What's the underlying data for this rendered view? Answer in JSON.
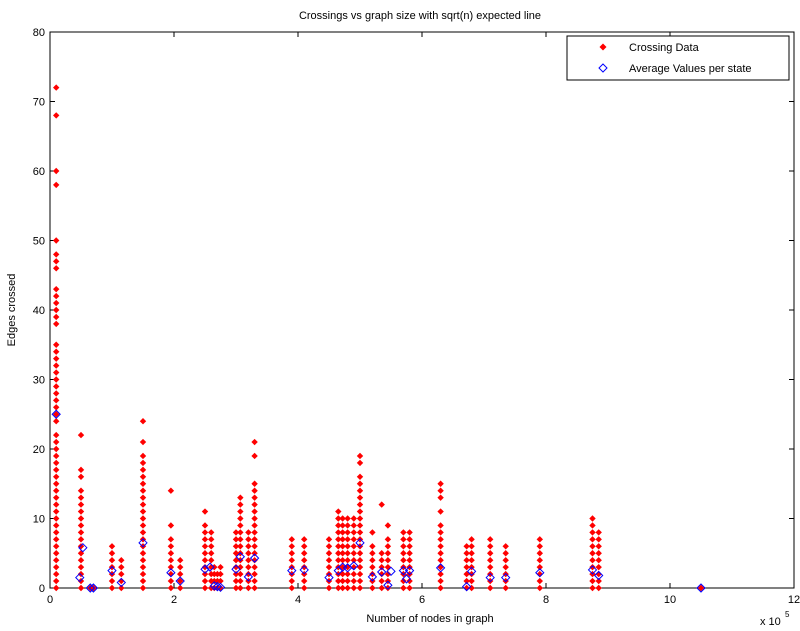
{
  "chart_data": {
    "type": "scatter",
    "title": "Crossings vs graph size with sqrt(n) expected line",
    "xlabel": "Number of nodes in graph",
    "ylabel": "Edges crossed",
    "x_scale_label": "x 10",
    "x_scale_exponent": "5",
    "xlim": [
      0,
      12
    ],
    "ylim": [
      0,
      80
    ],
    "xticks": [
      "0",
      "2",
      "4",
      "6",
      "8",
      "10",
      "12"
    ],
    "yticks": [
      "0",
      "10",
      "20",
      "30",
      "40",
      "50",
      "60",
      "70",
      "80"
    ],
    "grid": false,
    "legend_position": "top-right",
    "series": [
      {
        "name": "Crossing Data",
        "marker": "filled-diamond",
        "color": "#ff0000",
        "columns": [
          {
            "x": 0.1,
            "ys": [
              0,
              1,
              2,
              3,
              4,
              5,
              6,
              7,
              8,
              9,
              10,
              11,
              12,
              13,
              14,
              15,
              16,
              17,
              18,
              19,
              20,
              21,
              22,
              24,
              25,
              26,
              27,
              28,
              29,
              30,
              31,
              32,
              33,
              34,
              35,
              38,
              39,
              40,
              41,
              42,
              43,
              46,
              47,
              48,
              50,
              58,
              60,
              68,
              72
            ]
          },
          {
            "x": 0.5,
            "ys": [
              0,
              1,
              2,
              3,
              4,
              5,
              6,
              7,
              8,
              9,
              10,
              11,
              12,
              13,
              14,
              16,
              17,
              22
            ]
          },
          {
            "x": 0.65,
            "ys": [
              0
            ]
          },
          {
            "x": 0.7,
            "ys": [
              0
            ]
          },
          {
            "x": 1.0,
            "ys": [
              0,
              1,
              2,
              3,
              4,
              5,
              6
            ]
          },
          {
            "x": 1.15,
            "ys": [
              0,
              1,
              2,
              3,
              4
            ]
          },
          {
            "x": 1.5,
            "ys": [
              0,
              1,
              2,
              3,
              4,
              5,
              6,
              7,
              8,
              9,
              10,
              11,
              12,
              13,
              14,
              15,
              16,
              17,
              18,
              19,
              21,
              24
            ]
          },
          {
            "x": 1.95,
            "ys": [
              0,
              1,
              2,
              3,
              4,
              5,
              6,
              7,
              9,
              14
            ]
          },
          {
            "x": 2.1,
            "ys": [
              0,
              1,
              2,
              3,
              4
            ]
          },
          {
            "x": 2.5,
            "ys": [
              0,
              1,
              2,
              3,
              4,
              5,
              6,
              7,
              8,
              9,
              11
            ]
          },
          {
            "x": 2.6,
            "ys": [
              0,
              1,
              2,
              3,
              4,
              5,
              6,
              7,
              8
            ]
          },
          {
            "x": 2.65,
            "ys": [
              0,
              1,
              2,
              3
            ]
          },
          {
            "x": 2.7,
            "ys": [
              0,
              1,
              2
            ]
          },
          {
            "x": 2.75,
            "ys": [
              0,
              1,
              2,
              3
            ]
          },
          {
            "x": 3.0,
            "ys": [
              0,
              1,
              2,
              3,
              4,
              5,
              6,
              7,
              8
            ]
          },
          {
            "x": 3.07,
            "ys": [
              0,
              1,
              2,
              3,
              4,
              5,
              6,
              7,
              8,
              9,
              10,
              11,
              12,
              13
            ]
          },
          {
            "x": 3.2,
            "ys": [
              0,
              1,
              2,
              3,
              4,
              5,
              6,
              7,
              8
            ]
          },
          {
            "x": 3.3,
            "ys": [
              0,
              1,
              2,
              3,
              4,
              5,
              6,
              7,
              8,
              9,
              10,
              11,
              12,
              13,
              14,
              15,
              19,
              21
            ]
          },
          {
            "x": 3.9,
            "ys": [
              0,
              1,
              2,
              3,
              4,
              5,
              6,
              7
            ]
          },
          {
            "x": 4.1,
            "ys": [
              0,
              1,
              2,
              3,
              4,
              5,
              6,
              7
            ]
          },
          {
            "x": 4.5,
            "ys": [
              0,
              1,
              2,
              3,
              4,
              5,
              6,
              7
            ]
          },
          {
            "x": 4.65,
            "ys": [
              0,
              1,
              2,
              3,
              4,
              5,
              6,
              7,
              8,
              9,
              10,
              11
            ]
          },
          {
            "x": 4.72,
            "ys": [
              0,
              1,
              2,
              3,
              4,
              5,
              6,
              7,
              8,
              9,
              10
            ]
          },
          {
            "x": 4.8,
            "ys": [
              0,
              1,
              2,
              3,
              4,
              5,
              6,
              7,
              8,
              9,
              10
            ]
          },
          {
            "x": 4.9,
            "ys": [
              0,
              1,
              2,
              3,
              4,
              5,
              6,
              7,
              8,
              9,
              10
            ]
          },
          {
            "x": 5.0,
            "ys": [
              0,
              1,
              2,
              3,
              4,
              5,
              6,
              7,
              8,
              9,
              10,
              11,
              12,
              13,
              14,
              15,
              16,
              18,
              19
            ]
          },
          {
            "x": 5.2,
            "ys": [
              0,
              1,
              2,
              3,
              4,
              5,
              6,
              8
            ]
          },
          {
            "x": 5.35,
            "ys": [
              0,
              1,
              2,
              3,
              4,
              5,
              12
            ]
          },
          {
            "x": 5.45,
            "ys": [
              0,
              1,
              2,
              3,
              4,
              5,
              6,
              7,
              9
            ]
          },
          {
            "x": 5.7,
            "ys": [
              0,
              1,
              2,
              3,
              4,
              5,
              6,
              7,
              8
            ]
          },
          {
            "x": 5.8,
            "ys": [
              0,
              1,
              2,
              3,
              4,
              5,
              6,
              7,
              8
            ]
          },
          {
            "x": 6.3,
            "ys": [
              0,
              1,
              2,
              3,
              4,
              5,
              6,
              7,
              8,
              9,
              11,
              13,
              14,
              15
            ]
          },
          {
            "x": 6.72,
            "ys": [
              0,
              1,
              2,
              3,
              4,
              5,
              6
            ]
          },
          {
            "x": 6.8,
            "ys": [
              0,
              1,
              2,
              3,
              4,
              5,
              6,
              7
            ]
          },
          {
            "x": 7.1,
            "ys": [
              0,
              1,
              2,
              3,
              4,
              5,
              6,
              7
            ]
          },
          {
            "x": 7.35,
            "ys": [
              0,
              1,
              2,
              3,
              4,
              5,
              6
            ]
          },
          {
            "x": 7.9,
            "ys": [
              0,
              1,
              2,
              3,
              4,
              5,
              6,
              7
            ]
          },
          {
            "x": 8.75,
            "ys": [
              0,
              1,
              2,
              3,
              4,
              5,
              6,
              7,
              8,
              9,
              10
            ]
          },
          {
            "x": 8.85,
            "ys": [
              0,
              1,
              2,
              3,
              4,
              5,
              6,
              7,
              8
            ]
          },
          {
            "x": 10.5,
            "ys": [
              0
            ]
          }
        ]
      },
      {
        "name": "Average Values per state",
        "marker": "open-diamond",
        "color": "#0000ff",
        "points": [
          [
            0.1,
            25
          ],
          [
            0.48,
            1.5
          ],
          [
            0.53,
            5.8
          ],
          [
            0.65,
            0
          ],
          [
            0.7,
            0
          ],
          [
            1.0,
            2.5
          ],
          [
            1.15,
            0.8
          ],
          [
            1.5,
            6.5
          ],
          [
            1.95,
            2.2
          ],
          [
            2.1,
            1.0
          ],
          [
            2.5,
            2.7
          ],
          [
            2.58,
            3.0
          ],
          [
            2.65,
            0.3
          ],
          [
            2.7,
            0.2
          ],
          [
            2.75,
            0.1
          ],
          [
            3.0,
            2.7
          ],
          [
            3.07,
            4.5
          ],
          [
            3.2,
            1.6
          ],
          [
            3.3,
            4.3
          ],
          [
            3.9,
            2.5
          ],
          [
            4.1,
            2.6
          ],
          [
            4.5,
            1.5
          ],
          [
            4.65,
            2.5
          ],
          [
            4.72,
            3.0
          ],
          [
            4.8,
            2.9
          ],
          [
            4.9,
            3.2
          ],
          [
            5.0,
            6.5
          ],
          [
            5.2,
            1.6
          ],
          [
            5.35,
            2.3
          ],
          [
            5.45,
            0.4
          ],
          [
            5.5,
            2.4
          ],
          [
            5.7,
            2.5
          ],
          [
            5.75,
            1.3
          ],
          [
            5.8,
            2.5
          ],
          [
            6.3,
            2.9
          ],
          [
            6.72,
            0.2
          ],
          [
            6.8,
            2.4
          ],
          [
            7.1,
            1.5
          ],
          [
            7.35,
            1.5
          ],
          [
            7.9,
            2.2
          ],
          [
            8.75,
            2.6
          ],
          [
            8.85,
            1.8
          ],
          [
            10.5,
            0
          ]
        ]
      }
    ]
  }
}
